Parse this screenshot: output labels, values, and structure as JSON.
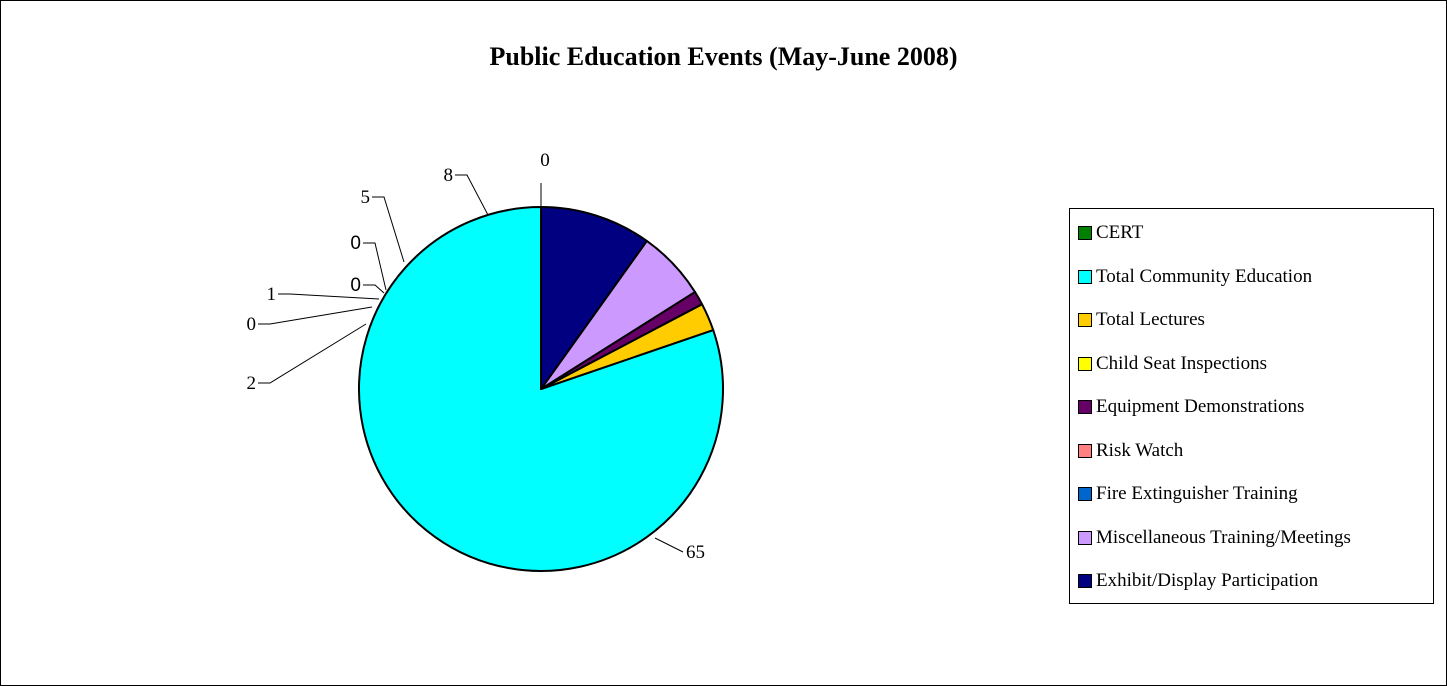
{
  "chart_data": {
    "type": "pie",
    "title": "Public Education Events (May-June 2008)",
    "legend_position": "right",
    "slices": [
      {
        "label": "CERT",
        "value": 0,
        "color": "#008000"
      },
      {
        "label": "Total Community Education",
        "value": 65,
        "color": "#00FFFF"
      },
      {
        "label": "Total Lectures",
        "value": 2,
        "color": "#FFCC00"
      },
      {
        "label": "Child Seat Inspections",
        "value": 0,
        "color": "#FFFF00"
      },
      {
        "label": "Equipment Demonstrations",
        "value": 1,
        "color": "#660066"
      },
      {
        "label": "Risk Watch",
        "value": 0,
        "color": "#FF8080"
      },
      {
        "label": "Fire Extinguisher Training",
        "value": 0,
        "color": "#0066CC"
      },
      {
        "label": "Miscellaneous Training/Meetings",
        "value": 5,
        "color": "#CC99FF"
      },
      {
        "label": "Exhibit/Display Participation",
        "value": 8,
        "color": "#000080"
      }
    ],
    "data_labels": [
      "0",
      "65",
      "2",
      "0",
      "1",
      "0",
      "0",
      "5",
      "8"
    ]
  }
}
